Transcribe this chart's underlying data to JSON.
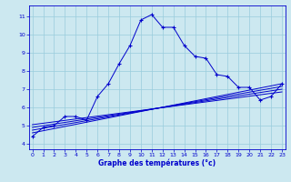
{
  "xlabel": "Graphe des températures (°c)",
  "background_color": "#cce8f0",
  "line_color": "#0000cc",
  "grid_color": "#99ccdd",
  "x_ticks": [
    0,
    1,
    2,
    3,
    4,
    5,
    6,
    7,
    8,
    9,
    10,
    11,
    12,
    13,
    14,
    15,
    16,
    17,
    18,
    19,
    20,
    21,
    22,
    23
  ],
  "y_ticks": [
    4,
    5,
    6,
    7,
    8,
    9,
    10,
    11
  ],
  "ylim": [
    3.7,
    11.6
  ],
  "xlim": [
    -0.3,
    23.3
  ],
  "main_line": {
    "x": [
      0,
      1,
      2,
      3,
      4,
      5,
      6,
      7,
      8,
      9,
      10,
      11,
      12,
      13,
      14,
      15,
      16,
      17,
      18,
      19,
      20,
      21,
      22,
      23
    ],
    "y": [
      4.4,
      4.9,
      5.0,
      5.5,
      5.5,
      5.3,
      6.6,
      7.3,
      8.4,
      9.4,
      10.8,
      11.1,
      10.4,
      10.4,
      9.4,
      8.8,
      8.7,
      7.8,
      7.7,
      7.1,
      7.1,
      6.4,
      6.6,
      7.3
    ]
  },
  "trend_lines": [
    {
      "x": [
        0,
        23
      ],
      "y": [
        4.6,
        7.3
      ]
    },
    {
      "x": [
        0,
        23
      ],
      "y": [
        4.75,
        7.15
      ]
    },
    {
      "x": [
        0,
        23
      ],
      "y": [
        4.9,
        7.0
      ]
    },
    {
      "x": [
        0,
        23
      ],
      "y": [
        5.05,
        6.85
      ]
    }
  ]
}
